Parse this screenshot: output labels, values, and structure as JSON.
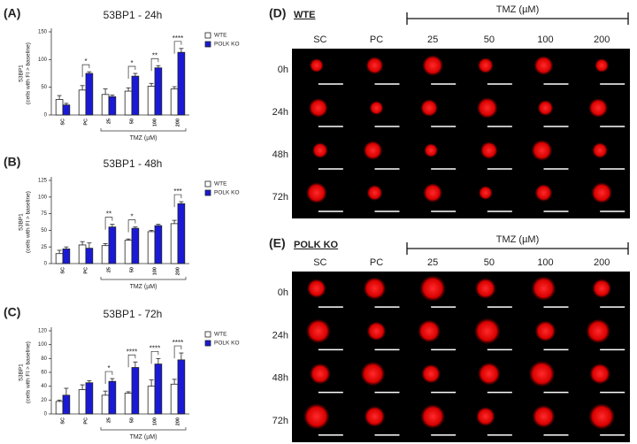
{
  "chart_data": [
    {
      "type": "bar",
      "panel": "(A)",
      "title": "53BP1 - 24h",
      "ylabel": "53BP1",
      "ylabel2": "(cells with FI > baseline)",
      "xlabel": "TMZ (µM)",
      "categories": [
        "SC",
        "PC",
        "25",
        "50",
        "100",
        "200"
      ],
      "series": [
        {
          "name": "WTE",
          "color": "#ffffff",
          "values": [
            28,
            45,
            37,
            43,
            52,
            47
          ],
          "errors": [
            7,
            8,
            10,
            6,
            5,
            4
          ]
        },
        {
          "name": "POLK KO",
          "color": "#1a1ad6",
          "values": [
            18,
            75,
            33,
            70,
            85,
            113
          ],
          "errors": [
            3,
            3,
            3,
            5,
            4,
            7
          ]
        }
      ],
      "ylim": [
        0,
        150
      ],
      "yticks": [
        0,
        50,
        100,
        150
      ],
      "significance": [
        {
          "category": "PC",
          "label": "*"
        },
        {
          "category": "50",
          "label": "*"
        },
        {
          "category": "100",
          "label": "**"
        },
        {
          "category": "200",
          "label": "****"
        }
      ]
    },
    {
      "type": "bar",
      "panel": "(B)",
      "title": "53BP1 - 48h",
      "ylabel": "53BP1",
      "ylabel2": "(cells with FI > baseline)",
      "xlabel": "TMZ (µM)",
      "categories": [
        "SC",
        "PC",
        "25",
        "50",
        "100",
        "200"
      ],
      "series": [
        {
          "name": "WTE",
          "color": "#ffffff",
          "values": [
            15,
            28,
            27,
            35,
            48,
            60
          ],
          "errors": [
            5,
            5,
            3,
            2,
            2,
            5
          ]
        },
        {
          "name": "POLK KO",
          "color": "#1a1ad6",
          "values": [
            22,
            23,
            55,
            53,
            57,
            90
          ],
          "errors": [
            3,
            8,
            4,
            2,
            2,
            3
          ]
        }
      ],
      "ylim": [
        0,
        125
      ],
      "yticks": [
        0,
        25,
        50,
        75,
        100,
        125
      ],
      "significance": [
        {
          "category": "25",
          "label": "**"
        },
        {
          "category": "50",
          "label": "*"
        },
        {
          "category": "200",
          "label": "***"
        }
      ]
    },
    {
      "type": "bar",
      "panel": "(C)",
      "title": "53BP1 - 72h",
      "ylabel": "53BP1",
      "ylabel2": "(cells with FI > baseline)",
      "xlabel": "TMZ (µM)",
      "categories": [
        "SC",
        "PC",
        "25",
        "50",
        "100",
        "200"
      ],
      "series": [
        {
          "name": "WTE",
          "color": "#ffffff",
          "values": [
            18,
            35,
            27,
            30,
            40,
            43
          ],
          "errors": [
            2,
            7,
            6,
            2,
            9,
            7
          ]
        },
        {
          "name": "POLK KO",
          "color": "#1a1ad6",
          "values": [
            27,
            45,
            47,
            67,
            72,
            78
          ],
          "errors": [
            10,
            3,
            4,
            8,
            8,
            10
          ]
        }
      ],
      "ylim": [
        0,
        120
      ],
      "yticks": [
        0,
        20,
        40,
        60,
        80,
        100,
        120
      ],
      "significance": [
        {
          "category": "25",
          "label": "*"
        },
        {
          "category": "50",
          "label": "****"
        },
        {
          "category": "100",
          "label": "****"
        },
        {
          "category": "200",
          "label": "****"
        }
      ]
    }
  ],
  "panels": [
    {
      "label": "(D)",
      "name": "WTE",
      "tmz": "TMZ (µM)",
      "columns": [
        "SC",
        "PC",
        "25",
        "50",
        "100",
        "200"
      ],
      "rows": [
        "0h",
        "24h",
        "48h",
        "72h"
      ]
    },
    {
      "label": "(E)",
      "name": "POLK KO",
      "tmz": "TMZ (µM)",
      "columns": [
        "SC",
        "PC",
        "25",
        "50",
        "100",
        "200"
      ],
      "rows": [
        "0h",
        "24h",
        "48h",
        "72h"
      ]
    }
  ]
}
